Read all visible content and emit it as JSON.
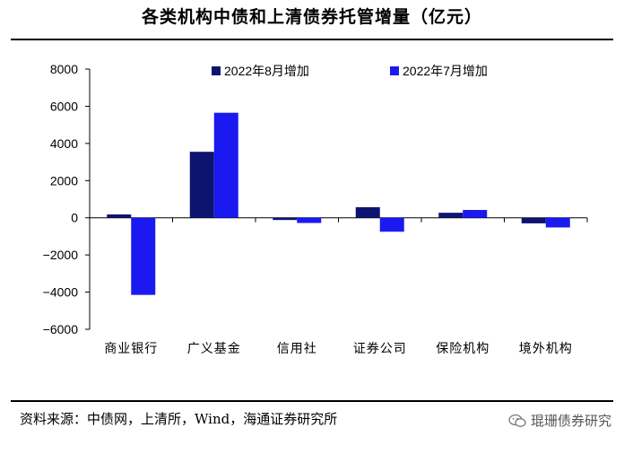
{
  "page_title": "各类机构中债和上清债券托管增量（亿元）",
  "source_note": "资料来源：中债网，上清所，Wind，海通证券研究所",
  "watermark": "琨珊债券研究",
  "colors": {
    "series_aug": "#0D1470",
    "series_jul": "#1A1AF0"
  },
  "chart_data": {
    "type": "bar",
    "categories": [
      "商业银行",
      "广义基金",
      "信用社",
      "证券公司",
      "保险机构",
      "境外机构"
    ],
    "series": [
      {
        "name": "2022年8月增加",
        "values": [
          180,
          3550,
          -120,
          570,
          270,
          -300
        ]
      },
      {
        "name": "2022年7月增加",
        "values": [
          -4150,
          5650,
          -280,
          -750,
          420,
          -520
        ]
      }
    ],
    "yticks": [
      8000,
      6000,
      4000,
      2000,
      0,
      -2000,
      -4000,
      -6000
    ],
    "ylim": [
      -6000,
      8000
    ],
    "legend_position": "top",
    "grid": false
  }
}
